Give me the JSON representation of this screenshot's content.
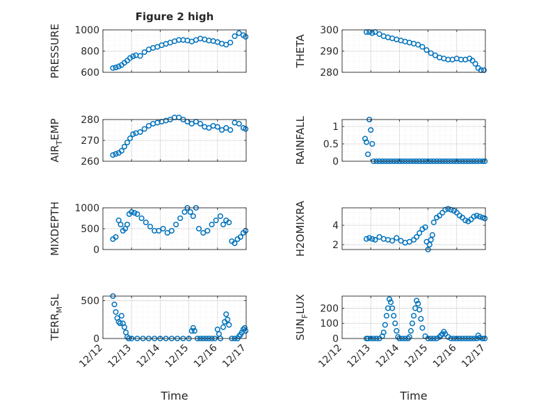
{
  "figure": {
    "title": "Figure 2 high",
    "marker_color": "#0072BD",
    "x_tick_labels": [
      "12/12",
      "12/13",
      "12/14",
      "12/15",
      "12/16",
      "12/17"
    ],
    "x_axis_label": "Time"
  },
  "chart_data": [
    {
      "id": "pressure",
      "type": "scatter",
      "ylabel": "PRESSURE",
      "ylabel_sub": "",
      "ylabel_post": "",
      "xlim": [
        0,
        5
      ],
      "ylim": [
        600,
        1000
      ],
      "yticks": [
        600,
        800,
        1000
      ],
      "grid": true,
      "x": [
        0.35,
        0.45,
        0.55,
        0.65,
        0.75,
        0.85,
        0.95,
        1.05,
        1.15,
        1.3,
        1.45,
        1.6,
        1.75,
        1.9,
        2.05,
        2.2,
        2.35,
        2.5,
        2.65,
        2.8,
        2.95,
        3.1,
        3.25,
        3.4,
        3.55,
        3.7,
        3.85,
        4.0,
        4.15,
        4.3,
        4.45,
        4.6,
        4.75,
        4.9,
        4.98
      ],
      "y": [
        640,
        645,
        655,
        668,
        690,
        710,
        735,
        750,
        760,
        755,
        790,
        815,
        830,
        840,
        855,
        868,
        880,
        893,
        905,
        905,
        900,
        890,
        905,
        918,
        910,
        900,
        895,
        885,
        870,
        860,
        880,
        940,
        970,
        950,
        935
      ]
    },
    {
      "id": "theta",
      "type": "scatter",
      "ylabel": "THETA",
      "ylabel_sub": "",
      "ylabel_post": "",
      "xlim": [
        0,
        5
      ],
      "ylim": [
        280,
        300
      ],
      "yticks": [
        280,
        290,
        300
      ],
      "grid": true,
      "x": [
        0.85,
        0.95,
        1.05,
        1.15,
        1.3,
        1.45,
        1.6,
        1.75,
        1.9,
        2.05,
        2.2,
        2.35,
        2.5,
        2.65,
        2.8,
        2.95,
        3.1,
        3.25,
        3.4,
        3.55,
        3.7,
        3.85,
        4.0,
        4.15,
        4.3,
        4.45,
        4.55,
        4.65,
        4.75,
        4.85,
        4.95
      ],
      "y": [
        299,
        299,
        298.5,
        299,
        298,
        297,
        296.5,
        296,
        295.5,
        295,
        294.5,
        294,
        293.5,
        293,
        292,
        290.5,
        289,
        288,
        287,
        286.5,
        286,
        286,
        286.5,
        286,
        286,
        286.5,
        285.5,
        284,
        282,
        281,
        281
      ]
    },
    {
      "id": "airtemp",
      "type": "scatter",
      "ylabel": "AIR",
      "ylabel_sub": "T",
      "ylabel_post": "EMP",
      "xlim": [
        0,
        5
      ],
      "ylim": [
        260,
        280
      ],
      "yticks": [
        260,
        270,
        280
      ],
      "grid": true,
      "x": [
        0.35,
        0.45,
        0.55,
        0.65,
        0.75,
        0.85,
        0.95,
        1.05,
        1.15,
        1.3,
        1.45,
        1.6,
        1.75,
        1.9,
        2.05,
        2.2,
        2.35,
        2.5,
        2.65,
        2.8,
        2.95,
        3.1,
        3.25,
        3.4,
        3.55,
        3.7,
        3.85,
        4.0,
        4.15,
        4.3,
        4.45,
        4.6,
        4.75,
        4.9,
        4.98
      ],
      "y": [
        263,
        263.5,
        264,
        265,
        267,
        269,
        271,
        273,
        273.5,
        274,
        275.5,
        277,
        278,
        278.5,
        279,
        279.5,
        280,
        281,
        281,
        280,
        279,
        278,
        279,
        278,
        276.5,
        276,
        277,
        276.5,
        275,
        276,
        275,
        278.5,
        278,
        276,
        275.5
      ]
    },
    {
      "id": "rainfall",
      "type": "scatter",
      "ylabel": "RAINFALL",
      "ylabel_sub": "",
      "ylabel_post": "",
      "xlim": [
        0,
        5
      ],
      "ylim": [
        0,
        1.2
      ],
      "yticks": [
        0,
        0.5,
        1
      ],
      "grid": true,
      "x": [
        0.8,
        0.85,
        0.9,
        0.95,
        1.0,
        1.05,
        1.1,
        1.2,
        1.3,
        1.4,
        1.5,
        1.6,
        1.7,
        1.8,
        1.9,
        2.0,
        2.1,
        2.2,
        2.3,
        2.4,
        2.5,
        2.6,
        2.7,
        2.8,
        2.9,
        3.0,
        3.1,
        3.2,
        3.3,
        3.4,
        3.5,
        3.6,
        3.7,
        3.8,
        3.9,
        4.0,
        4.1,
        4.2,
        4.3,
        4.4,
        4.5,
        4.6,
        4.7,
        4.8,
        4.9,
        4.98
      ],
      "y": [
        0.65,
        0.55,
        0.2,
        1.2,
        0.9,
        0.5,
        0,
        0,
        0,
        0,
        0,
        0,
        0,
        0,
        0,
        0,
        0,
        0,
        0,
        0,
        0,
        0,
        0,
        0,
        0,
        0,
        0,
        0,
        0,
        0,
        0,
        0,
        0,
        0,
        0,
        0,
        0,
        0,
        0,
        0,
        0,
        0,
        0,
        0,
        0,
        0
      ]
    },
    {
      "id": "mixdepth",
      "type": "scatter",
      "ylabel": "MIXDEPTH",
      "ylabel_sub": "",
      "ylabel_post": "",
      "xlim": [
        0,
        5
      ],
      "ylim": [
        0,
        1000
      ],
      "yticks": [
        0,
        500,
        1000
      ],
      "grid": true,
      "x": [
        0.35,
        0.45,
        0.55,
        0.62,
        0.7,
        0.78,
        0.85,
        0.92,
        1.0,
        1.1,
        1.2,
        1.35,
        1.5,
        1.65,
        1.8,
        1.95,
        2.1,
        2.25,
        2.4,
        2.55,
        2.7,
        2.85,
        2.95,
        3.05,
        3.15,
        3.25,
        3.35,
        3.5,
        3.65,
        3.8,
        3.95,
        4.1,
        4.2,
        4.3,
        4.4,
        4.5,
        4.6,
        4.7,
        4.8,
        4.9,
        4.98
      ],
      "y": [
        250,
        300,
        700,
        600,
        450,
        500,
        600,
        850,
        900,
        880,
        850,
        750,
        650,
        550,
        450,
        450,
        500,
        400,
        450,
        600,
        750,
        900,
        1000,
        900,
        800,
        1000,
        500,
        400,
        450,
        600,
        700,
        800,
        600,
        700,
        650,
        200,
        150,
        250,
        300,
        400,
        450
      ]
    },
    {
      "id": "h2omixra",
      "type": "scatter",
      "ylabel": "H2OMIXRA",
      "ylabel_sub": "",
      "ylabel_post": "",
      "xlim": [
        0,
        5
      ],
      "ylim": [
        1.5,
        5.8
      ],
      "yticks": [
        2,
        4
      ],
      "grid": true,
      "x": [
        0.85,
        0.95,
        1.05,
        1.15,
        1.3,
        1.45,
        1.6,
        1.75,
        1.9,
        2.05,
        2.2,
        2.35,
        2.5,
        2.6,
        2.7,
        2.8,
        2.9,
        2.95,
        3.0,
        3.05,
        3.1,
        3.15,
        3.2,
        3.3,
        3.4,
        3.5,
        3.6,
        3.7,
        3.8,
        3.9,
        4.0,
        4.1,
        4.2,
        4.3,
        4.4,
        4.5,
        4.6,
        4.7,
        4.8,
        4.9,
        4.98
      ],
      "y": [
        2.6,
        2.7,
        2.6,
        2.5,
        2.8,
        2.6,
        2.5,
        2.4,
        2.7,
        2.4,
        2.2,
        2.3,
        2.5,
        2.8,
        3.2,
        3.6,
        3.8,
        2.3,
        1.5,
        2.0,
        2.5,
        3.0,
        4.3,
        4.8,
        5.0,
        5.3,
        5.6,
        5.7,
        5.6,
        5.5,
        5.3,
        5.0,
        4.8,
        4.5,
        4.4,
        4.6,
        4.9,
        5.0,
        4.9,
        4.8,
        4.7
      ]
    },
    {
      "id": "terrmsl",
      "type": "scatter",
      "ylabel": "TERR",
      "ylabel_sub": "M",
      "ylabel_post": "SL",
      "xlim": [
        0,
        5
      ],
      "ylim": [
        0,
        560
      ],
      "yticks": [
        0,
        500
      ],
      "grid": true,
      "x": [
        0.35,
        0.4,
        0.45,
        0.5,
        0.55,
        0.6,
        0.65,
        0.7,
        0.75,
        0.8,
        0.85,
        0.9,
        1.0,
        1.2,
        1.4,
        1.6,
        1.8,
        2.0,
        2.2,
        2.4,
        2.6,
        2.8,
        3.0,
        3.1,
        3.15,
        3.2,
        3.3,
        3.4,
        3.5,
        3.6,
        3.7,
        3.8,
        3.9,
        4.0,
        4.05,
        4.1,
        4.2,
        4.25,
        4.3,
        4.35,
        4.4,
        4.5,
        4.6,
        4.7,
        4.75,
        4.8,
        4.85,
        4.9,
        4.95,
        4.98
      ],
      "y": [
        560,
        450,
        350,
        270,
        220,
        200,
        300,
        200,
        150,
        80,
        20,
        0,
        0,
        0,
        0,
        0,
        0,
        0,
        0,
        0,
        0,
        0,
        0,
        100,
        140,
        100,
        0,
        0,
        0,
        0,
        0,
        0,
        0,
        120,
        60,
        0,
        150,
        220,
        320,
        250,
        180,
        0,
        0,
        0,
        30,
        50,
        80,
        120,
        140,
        100
      ]
    },
    {
      "id": "sunflux",
      "type": "scatter",
      "ylabel": "SUN",
      "ylabel_sub": "F",
      "ylabel_post": "LUX",
      "xlim": [
        0,
        5
      ],
      "ylim": [
        0,
        280
      ],
      "yticks": [
        0,
        100,
        200
      ],
      "grid": true,
      "x": [
        0.85,
        0.9,
        1.0,
        1.1,
        1.2,
        1.3,
        1.4,
        1.45,
        1.5,
        1.55,
        1.6,
        1.65,
        1.7,
        1.75,
        1.8,
        1.85,
        1.9,
        1.95,
        2.0,
        2.1,
        2.2,
        2.3,
        2.35,
        2.4,
        2.45,
        2.5,
        2.55,
        2.6,
        2.65,
        2.7,
        2.75,
        2.8,
        2.9,
        3.0,
        3.1,
        3.2,
        3.3,
        3.4,
        3.45,
        3.5,
        3.55,
        3.6,
        3.7,
        3.8,
        3.9,
        4.0,
        4.1,
        4.2,
        4.3,
        4.4,
        4.5,
        4.6,
        4.7,
        4.75,
        4.8,
        4.9,
        4.98
      ],
      "y": [
        0,
        0,
        0,
        0,
        0,
        0,
        15,
        40,
        90,
        150,
        200,
        260,
        240,
        200,
        150,
        100,
        50,
        10,
        0,
        0,
        0,
        0,
        10,
        50,
        100,
        150,
        200,
        250,
        230,
        190,
        130,
        70,
        15,
        0,
        0,
        0,
        0,
        10,
        20,
        30,
        45,
        30,
        10,
        0,
        0,
        0,
        0,
        0,
        0,
        0,
        0,
        0,
        0,
        20,
        5,
        0,
        0
      ]
    }
  ]
}
